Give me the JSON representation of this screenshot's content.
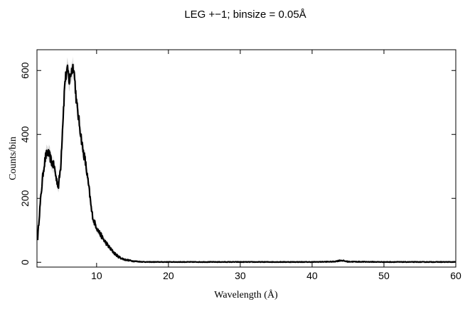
{
  "chart_data": {
    "type": "line",
    "title": "LEG +−1; binsize = 0.05Å",
    "xlabel": "Wavelength (Å)",
    "ylabel": "Counts/bin",
    "xlim": [
      1.7,
      60
    ],
    "ylim": [
      -15,
      665
    ],
    "x_ticks": [
      10,
      20,
      30,
      40,
      50,
      60
    ],
    "y_ticks": [
      0,
      200,
      400,
      600
    ],
    "grid": false,
    "legend": "none",
    "series_color": "#000000",
    "error_band_color": "#b0b0b0",
    "series": [
      {
        "x": [
          1.8,
          2.0,
          2.3,
          2.6,
          2.9,
          3.2,
          3.5,
          3.8,
          4.1,
          4.4,
          4.7,
          5.0,
          5.3,
          5.6,
          5.8,
          6.0,
          6.2,
          6.4,
          6.6,
          6.8,
          7.0,
          7.2,
          7.5,
          7.8,
          8.1,
          8.4,
          8.7,
          9.0,
          9.3,
          9.6,
          9.9,
          10.2,
          10.6,
          11.0,
          11.5,
          12.0,
          12.5,
          13.0,
          13.5,
          14.0,
          14.5,
          15.0,
          15.5,
          16.0,
          17.0,
          18.0,
          20.0,
          25.0,
          30.0,
          35.0,
          40.0,
          43.0,
          44.0,
          45.0,
          50.0,
          55.0,
          60.0
        ],
        "y": [
          75,
          140,
          220,
          290,
          330,
          345,
          330,
          310,
          300,
          260,
          240,
          300,
          440,
          570,
          590,
          600,
          565,
          590,
          605,
          615,
          560,
          500,
          450,
          400,
          350,
          320,
          270,
          220,
          160,
          130,
          115,
          100,
          85,
          70,
          55,
          40,
          28,
          18,
          12,
          8,
          6,
          4,
          3,
          2,
          1,
          1,
          1,
          1,
          1,
          1,
          1,
          2,
          6,
          2,
          1,
          1,
          1
        ]
      }
    ]
  }
}
